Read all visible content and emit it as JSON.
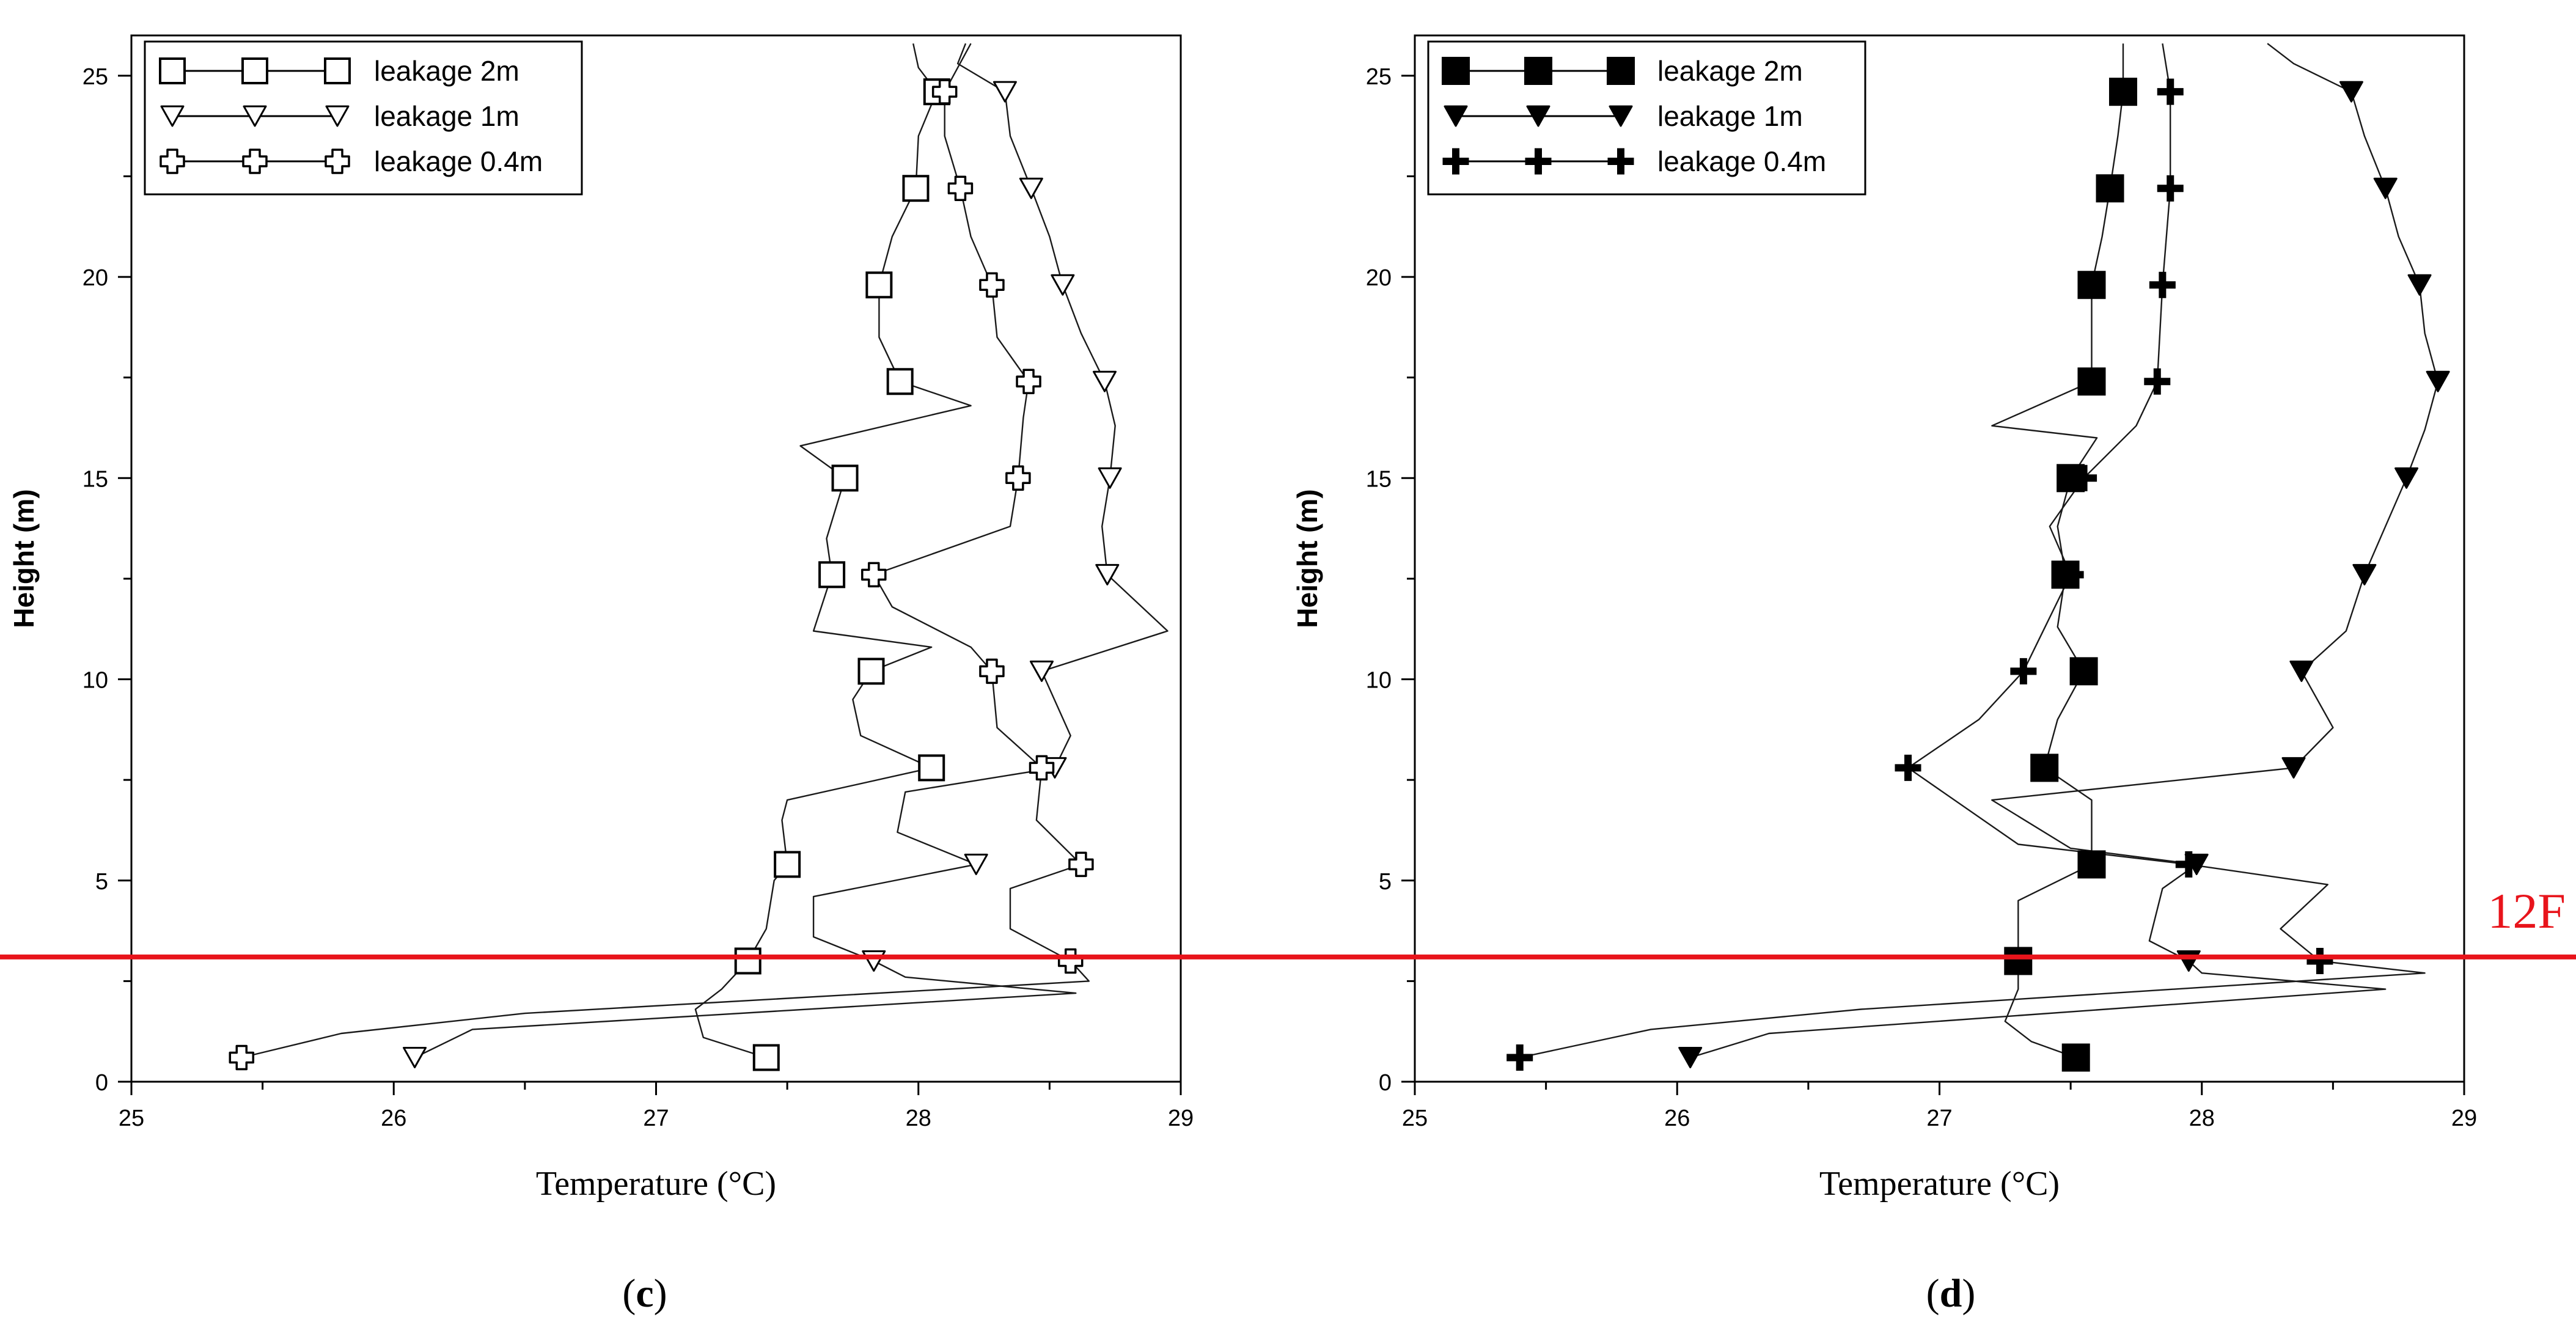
{
  "chart_data": [
    {
      "type": "line",
      "panel": "c",
      "xlabel": "Temperature (°C)",
      "ylabel": "Height (m)",
      "xlim": [
        25,
        29
      ],
      "ylim": [
        0,
        26
      ],
      "xticks": [
        25,
        26,
        27,
        28,
        29
      ],
      "yticks": [
        0,
        5,
        10,
        15,
        20,
        25
      ],
      "marker_fill": "open",
      "legend_position": "top-left",
      "series": [
        {
          "name": "leakage 2m",
          "marker": "square",
          "markers": [
            {
              "x": 27.42,
              "y": 0.6
            },
            {
              "x": 27.35,
              "y": 3.0
            },
            {
              "x": 27.5,
              "y": 5.4
            },
            {
              "x": 28.05,
              "y": 7.8
            },
            {
              "x": 27.82,
              "y": 10.2
            },
            {
              "x": 27.67,
              "y": 12.6
            },
            {
              "x": 27.72,
              "y": 15.0
            },
            {
              "x": 27.93,
              "y": 17.4
            },
            {
              "x": 27.85,
              "y": 19.8
            },
            {
              "x": 27.99,
              "y": 22.2
            },
            {
              "x": 28.07,
              "y": 24.6
            }
          ],
          "line": [
            [
              27.42,
              0.6
            ],
            [
              27.18,
              1.1
            ],
            [
              27.15,
              1.8
            ],
            [
              27.25,
              2.3
            ],
            [
              27.35,
              3.0
            ],
            [
              27.42,
              3.8
            ],
            [
              27.45,
              5.0
            ],
            [
              27.5,
              5.4
            ],
            [
              27.48,
              6.5
            ],
            [
              27.5,
              7.0
            ],
            [
              28.05,
              7.8
            ],
            [
              27.78,
              8.6
            ],
            [
              27.75,
              9.5
            ],
            [
              27.82,
              10.2
            ],
            [
              28.05,
              10.8
            ],
            [
              27.6,
              11.2
            ],
            [
              27.67,
              12.6
            ],
            [
              27.65,
              13.5
            ],
            [
              27.72,
              15.0
            ],
            [
              27.55,
              15.8
            ],
            [
              28.2,
              16.8
            ],
            [
              27.93,
              17.4
            ],
            [
              27.85,
              18.5
            ],
            [
              27.85,
              19.8
            ],
            [
              27.9,
              21.0
            ],
            [
              27.99,
              22.2
            ],
            [
              28.0,
              23.5
            ],
            [
              28.07,
              24.6
            ],
            [
              28.0,
              25.2
            ],
            [
              27.98,
              25.8
            ]
          ]
        },
        {
          "name": "leakage 1m",
          "marker": "triangle-down",
          "markers": [
            {
              "x": 26.08,
              "y": 0.6
            },
            {
              "x": 27.83,
              "y": 3.0
            },
            {
              "x": 28.22,
              "y": 5.4
            },
            {
              "x": 28.52,
              "y": 7.8
            },
            {
              "x": 28.47,
              "y": 10.2
            },
            {
              "x": 28.72,
              "y": 12.6
            },
            {
              "x": 28.73,
              "y": 15.0
            },
            {
              "x": 28.71,
              "y": 17.4
            },
            {
              "x": 28.55,
              "y": 19.8
            },
            {
              "x": 28.43,
              "y": 22.2
            },
            {
              "x": 28.33,
              "y": 24.6
            }
          ],
          "line": [
            [
              26.08,
              0.6
            ],
            [
              26.3,
              1.3
            ],
            [
              28.6,
              2.2
            ],
            [
              27.95,
              2.6
            ],
            [
              27.83,
              3.0
            ],
            [
              27.6,
              3.6
            ],
            [
              27.6,
              4.6
            ],
            [
              28.22,
              5.4
            ],
            [
              27.92,
              6.2
            ],
            [
              27.95,
              7.2
            ],
            [
              28.52,
              7.8
            ],
            [
              28.58,
              8.6
            ],
            [
              28.47,
              10.2
            ],
            [
              28.95,
              11.2
            ],
            [
              28.72,
              12.6
            ],
            [
              28.7,
              13.8
            ],
            [
              28.73,
              15.0
            ],
            [
              28.75,
              16.3
            ],
            [
              28.71,
              17.4
            ],
            [
              28.62,
              18.6
            ],
            [
              28.55,
              19.8
            ],
            [
              28.5,
              21.0
            ],
            [
              28.43,
              22.2
            ],
            [
              28.35,
              23.5
            ],
            [
              28.33,
              24.6
            ],
            [
              28.15,
              25.3
            ],
            [
              28.18,
              25.8
            ]
          ]
        },
        {
          "name": "leakage 0.4m",
          "marker": "cross",
          "markers": [
            {
              "x": 25.42,
              "y": 0.6
            },
            {
              "x": 28.58,
              "y": 3.0
            },
            {
              "x": 28.62,
              "y": 5.4
            },
            {
              "x": 28.47,
              "y": 7.8
            },
            {
              "x": 28.28,
              "y": 10.2
            },
            {
              "x": 27.83,
              "y": 12.6
            },
            {
              "x": 28.38,
              "y": 15.0
            },
            {
              "x": 28.42,
              "y": 17.4
            },
            {
              "x": 28.28,
              "y": 19.8
            },
            {
              "x": 28.16,
              "y": 22.2
            },
            {
              "x": 28.1,
              "y": 24.6
            }
          ],
          "line": [
            [
              25.42,
              0.6
            ],
            [
              25.8,
              1.2
            ],
            [
              26.5,
              1.7
            ],
            [
              28.65,
              2.5
            ],
            [
              28.58,
              3.0
            ],
            [
              28.35,
              3.8
            ],
            [
              28.35,
              4.8
            ],
            [
              28.62,
              5.4
            ],
            [
              28.45,
              6.5
            ],
            [
              28.47,
              7.8
            ],
            [
              28.3,
              8.8
            ],
            [
              28.28,
              10.2
            ],
            [
              28.2,
              10.8
            ],
            [
              27.9,
              11.8
            ],
            [
              27.83,
              12.6
            ],
            [
              28.35,
              13.8
            ],
            [
              28.38,
              15.0
            ],
            [
              28.4,
              16.5
            ],
            [
              28.42,
              17.4
            ],
            [
              28.3,
              18.5
            ],
            [
              28.28,
              19.8
            ],
            [
              28.2,
              21.0
            ],
            [
              28.16,
              22.2
            ],
            [
              28.1,
              23.5
            ],
            [
              28.1,
              24.6
            ],
            [
              28.15,
              25.2
            ],
            [
              28.2,
              25.8
            ]
          ]
        }
      ]
    },
    {
      "type": "line",
      "panel": "d",
      "xlabel": "Temperature (°C)",
      "ylabel": "Height (m)",
      "xlim": [
        25,
        29
      ],
      "ylim": [
        0,
        26
      ],
      "xticks": [
        25,
        26,
        27,
        28,
        29
      ],
      "yticks": [
        0,
        5,
        10,
        15,
        20,
        25
      ],
      "marker_fill": "filled",
      "legend_position": "top-left",
      "series": [
        {
          "name": "leakage 2m",
          "marker": "square",
          "markers": [
            {
              "x": 27.52,
              "y": 0.6
            },
            {
              "x": 27.3,
              "y": 3.0
            },
            {
              "x": 27.58,
              "y": 5.4
            },
            {
              "x": 27.4,
              "y": 7.8
            },
            {
              "x": 27.55,
              "y": 10.2
            },
            {
              "x": 27.48,
              "y": 12.6
            },
            {
              "x": 27.5,
              "y": 15.0
            },
            {
              "x": 27.58,
              "y": 17.4
            },
            {
              "x": 27.58,
              "y": 19.8
            },
            {
              "x": 27.65,
              "y": 22.2
            },
            {
              "x": 27.7,
              "y": 24.6
            }
          ],
          "line": [
            [
              27.52,
              0.6
            ],
            [
              27.35,
              1.0
            ],
            [
              27.25,
              1.5
            ],
            [
              27.3,
              2.3
            ],
            [
              27.3,
              3.0
            ],
            [
              27.3,
              4.5
            ],
            [
              27.58,
              5.4
            ],
            [
              27.58,
              7.0
            ],
            [
              27.4,
              7.8
            ],
            [
              27.45,
              9.0
            ],
            [
              27.55,
              10.2
            ],
            [
              27.45,
              11.3
            ],
            [
              27.48,
              12.6
            ],
            [
              27.45,
              13.8
            ],
            [
              27.5,
              15.0
            ],
            [
              27.6,
              16.0
            ],
            [
              27.2,
              16.3
            ],
            [
              27.58,
              17.4
            ],
            [
              27.58,
              19.8
            ],
            [
              27.62,
              21.0
            ],
            [
              27.65,
              22.2
            ],
            [
              27.68,
              23.5
            ],
            [
              27.7,
              24.6
            ],
            [
              27.7,
              25.8
            ]
          ]
        },
        {
          "name": "leakage 1m",
          "marker": "triangle-down",
          "markers": [
            {
              "x": 26.05,
              "y": 0.6
            },
            {
              "x": 27.95,
              "y": 3.0
            },
            {
              "x": 27.98,
              "y": 5.4
            },
            {
              "x": 28.35,
              "y": 7.8
            },
            {
              "x": 28.38,
              "y": 10.2
            },
            {
              "x": 28.62,
              "y": 12.6
            },
            {
              "x": 28.78,
              "y": 15.0
            },
            {
              "x": 28.9,
              "y": 17.4
            },
            {
              "x": 28.83,
              "y": 19.8
            },
            {
              "x": 28.7,
              "y": 22.2
            },
            {
              "x": 28.57,
              "y": 24.6
            }
          ],
          "line": [
            [
              26.05,
              0.6
            ],
            [
              26.35,
              1.2
            ],
            [
              28.7,
              2.3
            ],
            [
              28.0,
              2.7
            ],
            [
              27.95,
              3.0
            ],
            [
              27.8,
              3.5
            ],
            [
              27.85,
              4.8
            ],
            [
              27.98,
              5.4
            ],
            [
              27.5,
              5.8
            ],
            [
              27.2,
              7.0
            ],
            [
              28.35,
              7.8
            ],
            [
              28.5,
              8.8
            ],
            [
              28.38,
              10.2
            ],
            [
              28.55,
              11.2
            ],
            [
              28.62,
              12.6
            ],
            [
              28.7,
              13.8
            ],
            [
              28.78,
              15.0
            ],
            [
              28.85,
              16.2
            ],
            [
              28.9,
              17.4
            ],
            [
              28.85,
              18.6
            ],
            [
              28.83,
              19.8
            ],
            [
              28.75,
              21.0
            ],
            [
              28.7,
              22.2
            ],
            [
              28.62,
              23.5
            ],
            [
              28.57,
              24.6
            ],
            [
              28.35,
              25.3
            ],
            [
              28.25,
              25.8
            ]
          ]
        },
        {
          "name": "leakage 0.4m",
          "marker": "plus",
          "markers": [
            {
              "x": 25.4,
              "y": 0.6
            },
            {
              "x": 28.45,
              "y": 3.0
            },
            {
              "x": 27.95,
              "y": 5.4
            },
            {
              "x": 26.88,
              "y": 7.8
            },
            {
              "x": 27.32,
              "y": 10.2
            },
            {
              "x": 27.5,
              "y": 12.6
            },
            {
              "x": 27.55,
              "y": 15.0
            },
            {
              "x": 27.83,
              "y": 17.4
            },
            {
              "x": 27.85,
              "y": 19.8
            },
            {
              "x": 27.88,
              "y": 22.2
            },
            {
              "x": 27.88,
              "y": 24.6
            }
          ],
          "line": [
            [
              25.4,
              0.6
            ],
            [
              25.9,
              1.3
            ],
            [
              26.7,
              1.8
            ],
            [
              28.85,
              2.7
            ],
            [
              28.45,
              3.0
            ],
            [
              28.3,
              3.8
            ],
            [
              28.48,
              4.9
            ],
            [
              27.95,
              5.4
            ],
            [
              27.3,
              5.9
            ],
            [
              26.88,
              7.8
            ],
            [
              27.15,
              9.0
            ],
            [
              27.32,
              10.2
            ],
            [
              27.38,
              11.0
            ],
            [
              27.5,
              12.6
            ],
            [
              27.42,
              13.8
            ],
            [
              27.55,
              15.0
            ],
            [
              27.75,
              16.3
            ],
            [
              27.83,
              17.4
            ],
            [
              27.85,
              19.8
            ],
            [
              27.88,
              22.2
            ],
            [
              27.88,
              24.6
            ],
            [
              27.85,
              25.8
            ]
          ]
        }
      ]
    }
  ],
  "panels": [
    {
      "label_prefix": "(",
      "label_letter": "c",
      "label_suffix": ")"
    },
    {
      "label_prefix": "(",
      "label_letter": "d",
      "label_suffix": ")"
    }
  ],
  "reference_line": {
    "label": "12F",
    "y_value": 3.1,
    "color": "#e8141b"
  }
}
